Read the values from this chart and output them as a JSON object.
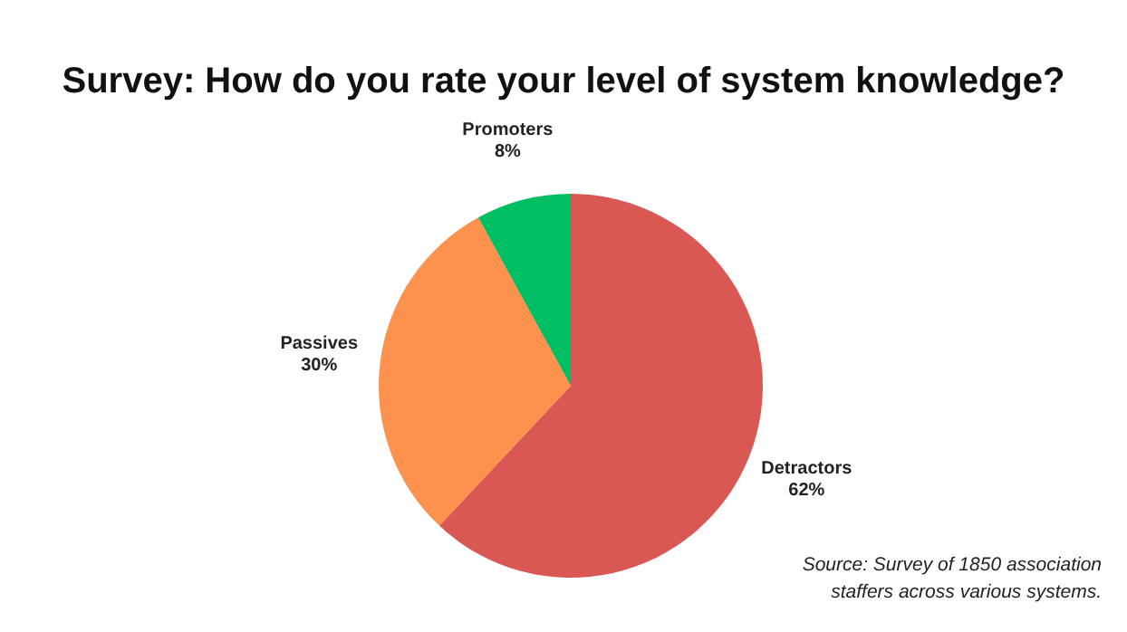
{
  "chart_data": {
    "type": "pie",
    "title": "Survey: How do you rate your level of system knowledge?",
    "categories": [
      "Detractors",
      "Passives",
      "Promoters"
    ],
    "values": [
      62,
      30,
      8
    ],
    "value_labels": [
      "62%",
      "30%",
      "8%"
    ],
    "colors": [
      "#d95854",
      "#fd924f",
      "#00bf63"
    ],
    "annotations": [
      "Source: Survey of 1850 association staffers across various systems."
    ]
  }
}
